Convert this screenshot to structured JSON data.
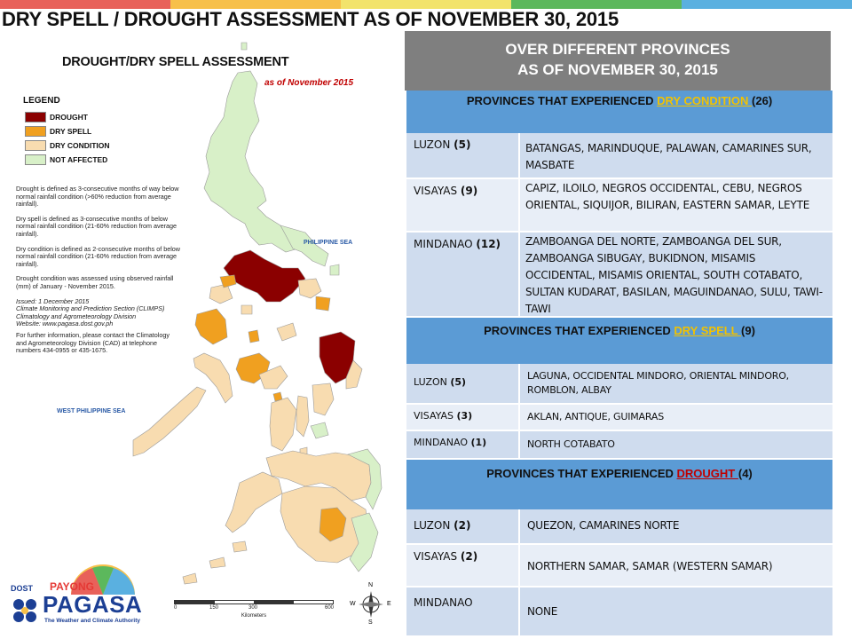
{
  "slide": {
    "title": "DRY SPELL / DROUGHT ASSESSMENT AS OF NOVEMBER 30, 2015",
    "strip_colors": [
      "#e8615a",
      "#f7c04a",
      "#f2e36b",
      "#5cb85c",
      "#5ab0e0"
    ]
  },
  "map": {
    "title": "DROUGHT/DRY SPELL ASSESSMENT",
    "subtitle": "as of November 2015",
    "legend_title": "LEGEND",
    "legend": [
      {
        "label": "DROUGHT",
        "color": "#8b0000"
      },
      {
        "label": "DRY SPELL",
        "color": "#f0a020"
      },
      {
        "label": "DRY CONDITION",
        "color": "#f8dcb0"
      },
      {
        "label": "NOT AFFECTED",
        "color": "#d8f0c8"
      }
    ],
    "notes": {
      "drought": "Drought is defined as 3-consecutive months of way below normal rainfall condition (>60% reduction from average rainfall).",
      "dry_spell": "Dry spell is defined as 3-consecutive months of below normal rainfall condition (21-60% reduction from average rainfall).",
      "dry_condition": "Dry condition is defined as 2-consecutive months of below normal rainfall condition (21-60% reduction from average rainfall).",
      "assessed": "Drought condition was assessed using observed rainfall (mm) of January - November 2015.",
      "issued": "Issued: 1 December 2015",
      "section": "Climate Monitoring and Prediction Section (CLIMPS)",
      "division": "Climatology and Agrometeorology Division",
      "website": "Website: www.pagasa.dost.gov.ph",
      "contact": "For further information, please contact the Climatology and Agrometeorology Division (CAD) at telephone numbers 434-0955 or 435-1675."
    },
    "sea_east": "PHILIPPINE SEA",
    "sea_west": "WEST PHILIPPINE SEA",
    "scale_ticks": [
      "0",
      "150",
      "300",
      "600"
    ],
    "scale_unit": "Kilometers",
    "compass": {
      "n": "N",
      "s": "S",
      "e": "E",
      "w": "W"
    },
    "logo": {
      "dost": "DOST",
      "payong": "PAYONG",
      "pagasa": "PAGASA",
      "tagline": "The Weather and Climate Authority"
    }
  },
  "table": {
    "header_line1": "OVER DIFFERENT PROVINCES",
    "header_line2": "AS OF NOVEMBER 30, 2015",
    "sections": [
      {
        "prefix": "PROVINCES THAT EXPERIENCED ",
        "keyword": "DRY CONDITION ",
        "keyword_color": "#f2c200",
        "count": "(26)",
        "rows": [
          {
            "region": "LUZON",
            "count": "(5)",
            "provinces": "BATANGAS, MARINDUQUE, PALAWAN, CAMARINES SUR, MASBATE"
          },
          {
            "region": "VISAYAS",
            "count": "(9)",
            "provinces": "CAPIZ, ILOILO, NEGROS OCCIDENTAL, CEBU, NEGROS ORIENTAL, SIQUIJOR, BILIRAN, EASTERN SAMAR, LEYTE"
          },
          {
            "region": "MINDANAO",
            "count": "(12)",
            "provinces": "ZAMBOANGA DEL NORTE, ZAMBOANGA DEL SUR, ZAMBOANGA SIBUGAY, BUKIDNON, MISAMIS OCCIDENTAL, MISAMIS ORIENTAL, SOUTH COTABATO, SULTAN KUDARAT, BASILAN, MAGUINDANAO, SULU, TAWI-TAWI"
          }
        ]
      },
      {
        "prefix": "PROVINCES THAT EXPERIENCED ",
        "keyword": "DRY SPELL ",
        "keyword_color": "#f2c200",
        "count": "(9)",
        "rows": [
          {
            "region": "LUZON",
            "count": "(5)",
            "provinces": "LAGUNA, OCCIDENTAL MINDORO, ORIENTAL MINDORO, ROMBLON, ALBAY"
          },
          {
            "region": "VISAYAS",
            "count": "(3)",
            "provinces": "AKLAN, ANTIQUE, GUIMARAS"
          },
          {
            "region": "MINDANAO",
            "count": "(1)",
            "provinces": "NORTH COTABATO"
          }
        ]
      },
      {
        "prefix": "PROVINCES THAT EXPERIENCED ",
        "keyword": "DROUGHT ",
        "keyword_color": "#c00000",
        "count": "(4)",
        "rows": [
          {
            "region": "LUZON",
            "count": "(2)",
            "provinces": "QUEZON, CAMARINES NORTE"
          },
          {
            "region": "VISAYAS",
            "count": "(2)",
            "provinces": "NORTHERN SAMAR, SAMAR (WESTERN SAMAR)"
          },
          {
            "region": "MINDANAO",
            "count": "",
            "provinces": "NONE"
          }
        ]
      }
    ]
  }
}
